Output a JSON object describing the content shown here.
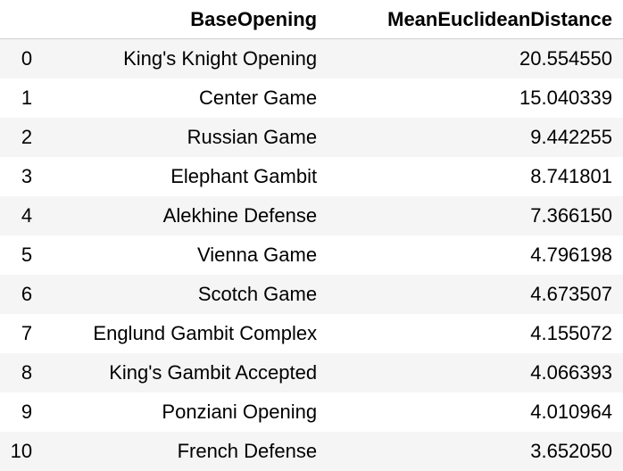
{
  "table": {
    "columns": [
      "",
      "BaseOpening",
      "MeanEuclideanDistance"
    ],
    "rows": [
      {
        "index": "0",
        "opening": "King's Knight Opening",
        "distance": "20.554550"
      },
      {
        "index": "1",
        "opening": "Center Game",
        "distance": "15.040339"
      },
      {
        "index": "2",
        "opening": "Russian Game",
        "distance": "9.442255"
      },
      {
        "index": "3",
        "opening": "Elephant Gambit",
        "distance": "8.741801"
      },
      {
        "index": "4",
        "opening": "Alekhine Defense",
        "distance": "7.366150"
      },
      {
        "index": "5",
        "opening": "Vienna Game",
        "distance": "4.796198"
      },
      {
        "index": "6",
        "opening": "Scotch Game",
        "distance": "4.673507"
      },
      {
        "index": "7",
        "opening": "Englund Gambit Complex",
        "distance": "4.155072"
      },
      {
        "index": "8",
        "opening": "King's Gambit Accepted",
        "distance": "4.066393"
      },
      {
        "index": "9",
        "opening": "Ponziani Opening",
        "distance": "4.010964"
      },
      {
        "index": "10",
        "opening": "French Defense",
        "distance": "3.652050"
      }
    ]
  }
}
